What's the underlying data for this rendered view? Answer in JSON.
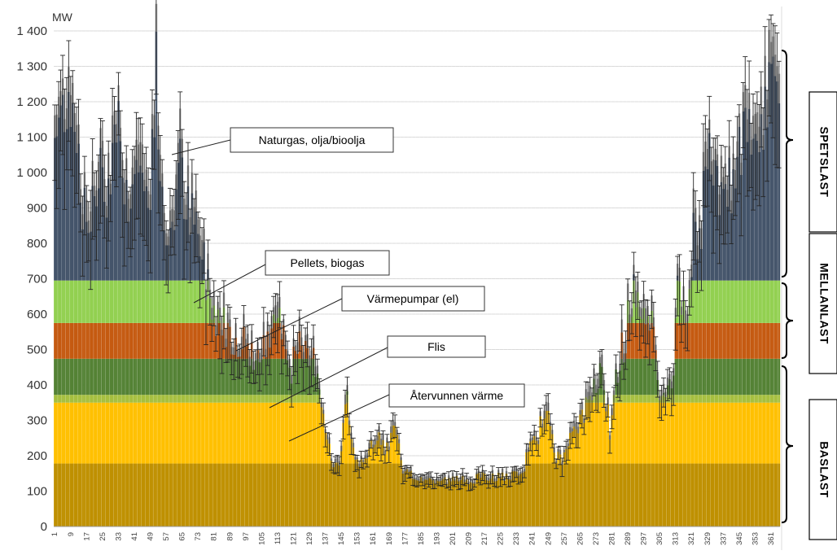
{
  "chart_data": {
    "type": "bar",
    "title": "",
    "xlabel": "",
    "ylabel": "MW",
    "ylim": [
      0,
      1400
    ],
    "yticks": [
      "0",
      "100",
      "200",
      "300",
      "400",
      "500",
      "600",
      "700",
      "800",
      "900",
      "1 000",
      "1 100",
      "1 200",
      "1 300",
      "1 400"
    ],
    "x_tick_labels": [
      "1",
      "9",
      "17",
      "25",
      "33",
      "41",
      "49",
      "57",
      "65",
      "73",
      "81",
      "89",
      "97",
      "105",
      "113",
      "121",
      "129",
      "137",
      "145",
      "153",
      "161",
      "169",
      "177",
      "185",
      "193",
      "201",
      "209",
      "217",
      "225",
      "233",
      "241",
      "249",
      "257",
      "265",
      "273",
      "281",
      "289",
      "297",
      "305",
      "313",
      "321",
      "329",
      "337",
      "345",
      "353",
      "361"
    ],
    "day_range": [
      1,
      365
    ],
    "layers": [
      {
        "name": "Återvunnen värme",
        "color": "#bf9000",
        "top": 178
      },
      {
        "name": "Flis",
        "color": "#ffc000",
        "top": 350
      },
      {
        "name": "Flis",
        "color": "#a6bf3f",
        "top": 372
      },
      {
        "name": "Värmepumpar (el)",
        "color": "#548235",
        "top": 474
      },
      {
        "name": "Värmepumpar (el)",
        "color": "#c55a11",
        "top": 575
      },
      {
        "name": "Pellets, biogas",
        "color": "#92d050",
        "top": 695
      },
      {
        "name": "Naturgas, olja/bioolja",
        "color": "#44546a",
        "top": 1400
      }
    ],
    "demand_profile": [
      [
        1,
        1100
      ],
      [
        4,
        1150
      ],
      [
        8,
        1250
      ],
      [
        12,
        1120
      ],
      [
        16,
        870
      ],
      [
        20,
        880
      ],
      [
        24,
        1050
      ],
      [
        28,
        950
      ],
      [
        32,
        1200
      ],
      [
        36,
        920
      ],
      [
        40,
        980
      ],
      [
        44,
        1020
      ],
      [
        48,
        900
      ],
      [
        52,
        1270
      ],
      [
        56,
        770
      ],
      [
        60,
        880
      ],
      [
        64,
        1010
      ],
      [
        68,
        880
      ],
      [
        72,
        830
      ],
      [
        76,
        740
      ],
      [
        80,
        620
      ],
      [
        84,
        590
      ],
      [
        88,
        560
      ],
      [
        92,
        530
      ],
      [
        96,
        520
      ],
      [
        100,
        490
      ],
      [
        104,
        470
      ],
      [
        108,
        510
      ],
      [
        112,
        650
      ],
      [
        116,
        550
      ],
      [
        120,
        450
      ],
      [
        124,
        500
      ],
      [
        128,
        470
      ],
      [
        132,
        470
      ],
      [
        136,
        330
      ],
      [
        140,
        180
      ],
      [
        144,
        170
      ],
      [
        148,
        360
      ],
      [
        152,
        180
      ],
      [
        156,
        190
      ],
      [
        160,
        220
      ],
      [
        164,
        250
      ],
      [
        168,
        220
      ],
      [
        172,
        280
      ],
      [
        176,
        150
      ],
      [
        182,
        140
      ],
      [
        190,
        130
      ],
      [
        200,
        130
      ],
      [
        210,
        135
      ],
      [
        220,
        140
      ],
      [
        230,
        140
      ],
      [
        236,
        145
      ],
      [
        240,
        240
      ],
      [
        244,
        260
      ],
      [
        248,
        350
      ],
      [
        252,
        200
      ],
      [
        256,
        190
      ],
      [
        260,
        240
      ],
      [
        264,
        290
      ],
      [
        268,
        330
      ],
      [
        272,
        400
      ],
      [
        276,
        470
      ],
      [
        280,
        260
      ],
      [
        284,
        450
      ],
      [
        288,
        540
      ],
      [
        292,
        700
      ],
      [
        296,
        560
      ],
      [
        300,
        620
      ],
      [
        304,
        400
      ],
      [
        308,
        380
      ],
      [
        312,
        400
      ],
      [
        314,
        780
      ],
      [
        318,
        520
      ],
      [
        322,
        800
      ],
      [
        326,
        850
      ],
      [
        330,
        1100
      ],
      [
        334,
        1000
      ],
      [
        338,
        900
      ],
      [
        342,
        980
      ],
      [
        346,
        1050
      ],
      [
        350,
        1100
      ],
      [
        354,
        1000
      ],
      [
        358,
        1200
      ],
      [
        362,
        1250
      ],
      [
        365,
        1270
      ]
    ],
    "annotations": [
      {
        "text": "Naturgas, olja/bioolja"
      },
      {
        "text": "Pellets, biogas"
      },
      {
        "text": "Värmepumpar (el)"
      },
      {
        "text": "Flis"
      },
      {
        "text": "Återvunnen värme"
      }
    ],
    "side_labels": [
      "SPETSLAST",
      "MELLANLAST",
      "BASLAST"
    ],
    "grid": true
  }
}
